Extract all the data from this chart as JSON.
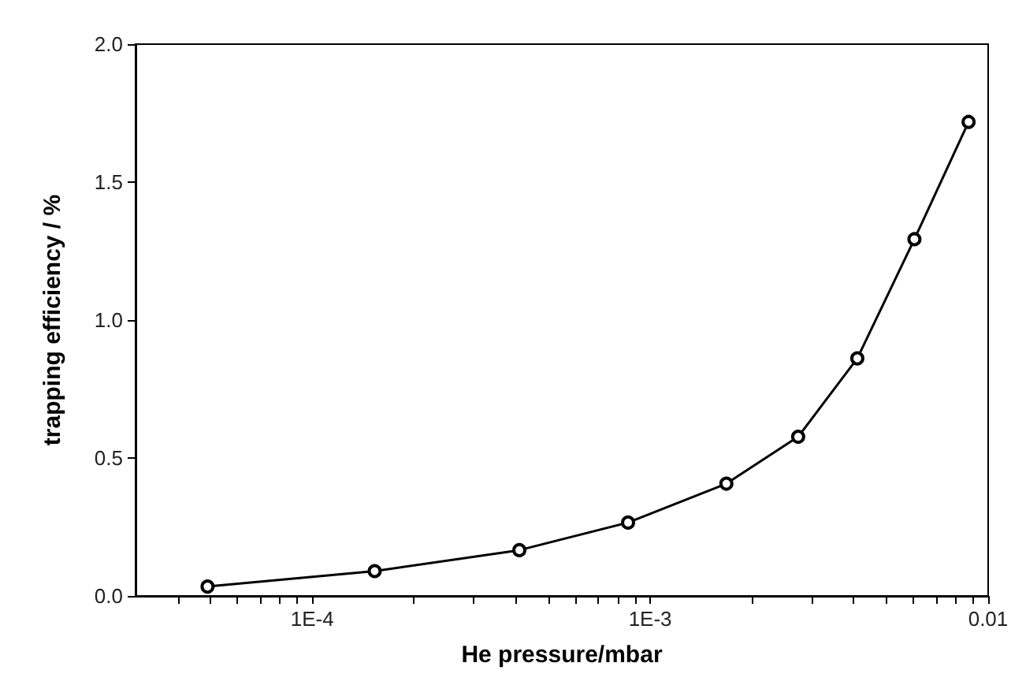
{
  "chart_data": {
    "type": "line",
    "xlabel": "He pressure/mbar",
    "ylabel": "trapping efficiency / %",
    "log": "x",
    "marker": "circle",
    "line_style": "solid",
    "x": [
      4.9e-05,
      0.000153,
      0.00041,
      0.00086,
      0.00168,
      0.00274,
      0.0041,
      0.00605,
      0.00875
    ],
    "series": [
      {
        "color": "#000000",
        "values": [
          0.034,
          0.09,
          0.166,
          0.266,
          0.407,
          0.577,
          0.861,
          1.293,
          1.718
        ]
      }
    ],
    "xlim": [
      3e-05,
      0.01
    ],
    "xticks": [
      {
        "value": 4e-05,
        "label": null
      },
      {
        "value": 5e-05,
        "label": null
      },
      {
        "value": 6e-05,
        "label": null
      },
      {
        "value": 7e-05,
        "label": null
      },
      {
        "value": 8e-05,
        "label": null
      },
      {
        "value": 9e-05,
        "label": null
      },
      {
        "value": 0.0001,
        "label": "1E-4"
      },
      {
        "value": 0.0002,
        "label": null
      },
      {
        "value": 0.0003,
        "label": null
      },
      {
        "value": 0.0004,
        "label": null
      },
      {
        "value": 0.0005,
        "label": null
      },
      {
        "value": 0.0006,
        "label": null
      },
      {
        "value": 0.0007,
        "label": null
      },
      {
        "value": 0.0008,
        "label": null
      },
      {
        "value": 0.0009,
        "label": null
      },
      {
        "value": 0.001,
        "label": "1E-3"
      },
      {
        "value": 0.002,
        "label": null
      },
      {
        "value": 0.003,
        "label": null
      },
      {
        "value": 0.004,
        "label": null
      },
      {
        "value": 0.005,
        "label": null
      },
      {
        "value": 0.006,
        "label": null
      },
      {
        "value": 0.007,
        "label": null
      },
      {
        "value": 0.008,
        "label": null
      },
      {
        "value": 0.009,
        "label": null
      },
      {
        "value": 0.01,
        "label": "0.01"
      }
    ],
    "ylim": [
      0,
      2
    ],
    "yticks": [
      {
        "value": 0,
        "label": "0.0"
      },
      {
        "value": 0.5,
        "label": "0.5"
      },
      {
        "value": 1,
        "label": "1.0"
      },
      {
        "value": 1.5,
        "label": "1.5"
      },
      {
        "value": 2,
        "label": "2.0"
      }
    ]
  }
}
